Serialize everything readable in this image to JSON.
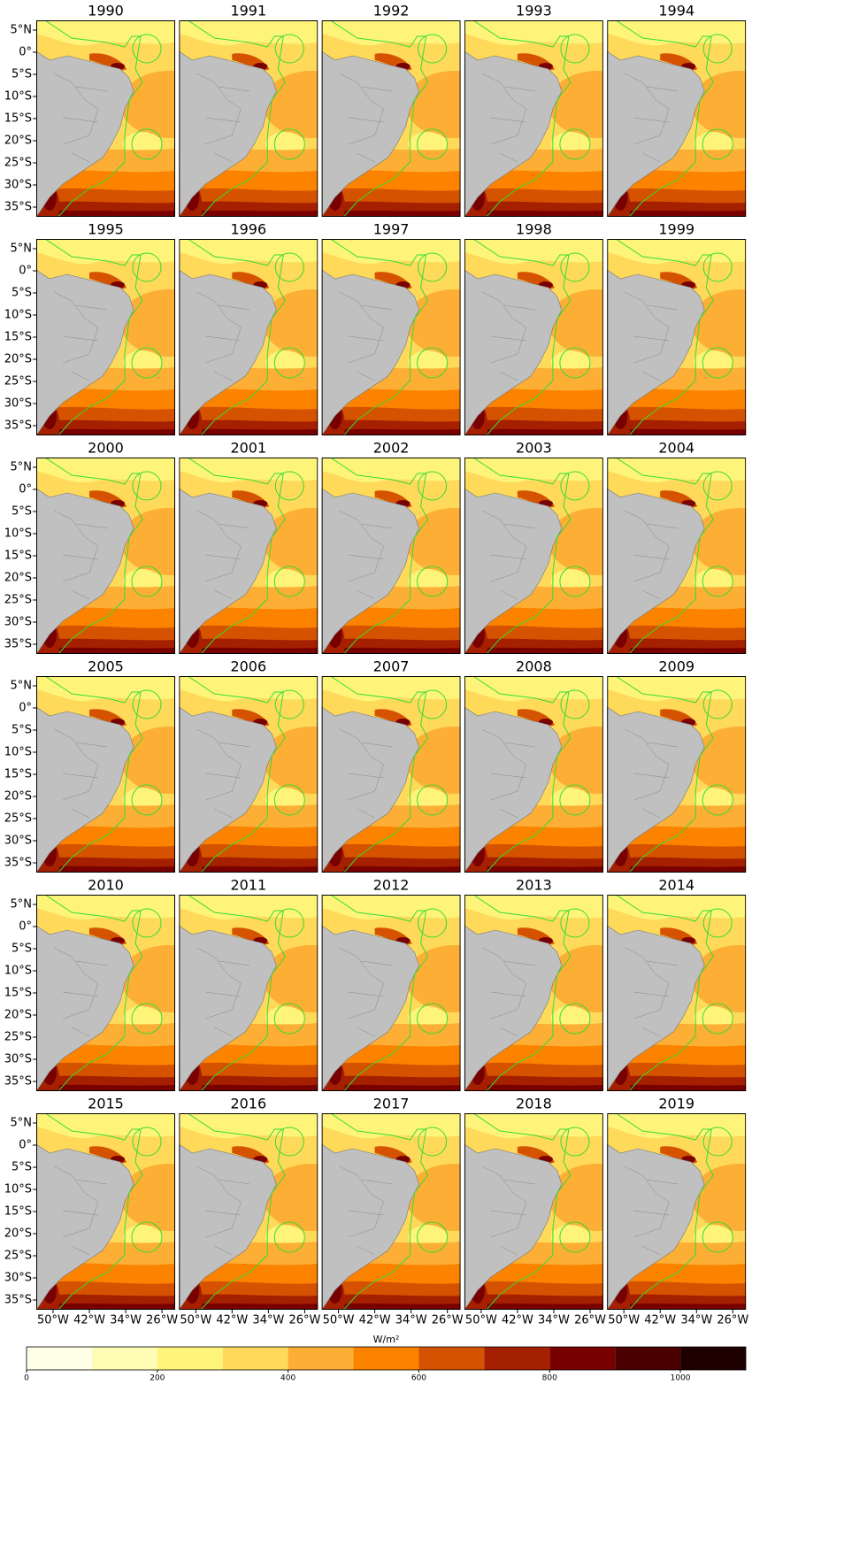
{
  "panels": [
    {
      "title": "1990"
    },
    {
      "title": "1991"
    },
    {
      "title": "1992"
    },
    {
      "title": "1993"
    },
    {
      "title": "1994"
    },
    {
      "title": "1995"
    },
    {
      "title": "1996"
    },
    {
      "title": "1997"
    },
    {
      "title": "1998"
    },
    {
      "title": "1999"
    },
    {
      "title": "2000"
    },
    {
      "title": "2001"
    },
    {
      "title": "2002"
    },
    {
      "title": "2003"
    },
    {
      "title": "2004"
    },
    {
      "title": "2005"
    },
    {
      "title": "2006"
    },
    {
      "title": "2007"
    },
    {
      "title": "2008"
    },
    {
      "title": "2009"
    },
    {
      "title": "2010"
    },
    {
      "title": "2011"
    },
    {
      "title": "2012"
    },
    {
      "title": "2013"
    },
    {
      "title": "2014"
    },
    {
      "title": "2015"
    },
    {
      "title": "2016"
    },
    {
      "title": "2017"
    },
    {
      "title": "2018"
    },
    {
      "title": "2019"
    }
  ],
  "latlim": [
    -37.2,
    7.2
  ],
  "lat_ticks": [
    {
      "value": 5,
      "label": "5°N"
    },
    {
      "value": 0,
      "label": "0°"
    },
    {
      "value": -5,
      "label": "5°S"
    },
    {
      "value": -10,
      "label": "10°S"
    },
    {
      "value": -15,
      "label": "15°S"
    },
    {
      "value": -20,
      "label": "20°S"
    },
    {
      "value": -25,
      "label": "25°S"
    },
    {
      "value": -30,
      "label": "30°S"
    },
    {
      "value": -35,
      "label": "35°S"
    }
  ],
  "lonlim": [
    -53.7,
    -23.1
  ],
  "lon_ticks": [
    {
      "value": -50,
      "label": "50°W"
    },
    {
      "value": -42,
      "label": "42°W"
    },
    {
      "value": -34,
      "label": "34°W"
    },
    {
      "value": -26,
      "label": "26°W"
    }
  ],
  "colorbar": {
    "label": "W/m²",
    "lim": [
      0,
      1100
    ],
    "ticks": [
      0,
      200,
      400,
      600,
      800,
      1000
    ],
    "levels": [
      0,
      100,
      200,
      300,
      400,
      500,
      600,
      700,
      800,
      900,
      1000,
      1100
    ],
    "colors": [
      "#fffee6",
      "#fffcb5",
      "#fff47a",
      "#fed95a",
      "#fcae35",
      "#fb8300",
      "#d55300",
      "#a52000",
      "#780000",
      "#4a0000",
      "#1f0000"
    ]
  }
}
